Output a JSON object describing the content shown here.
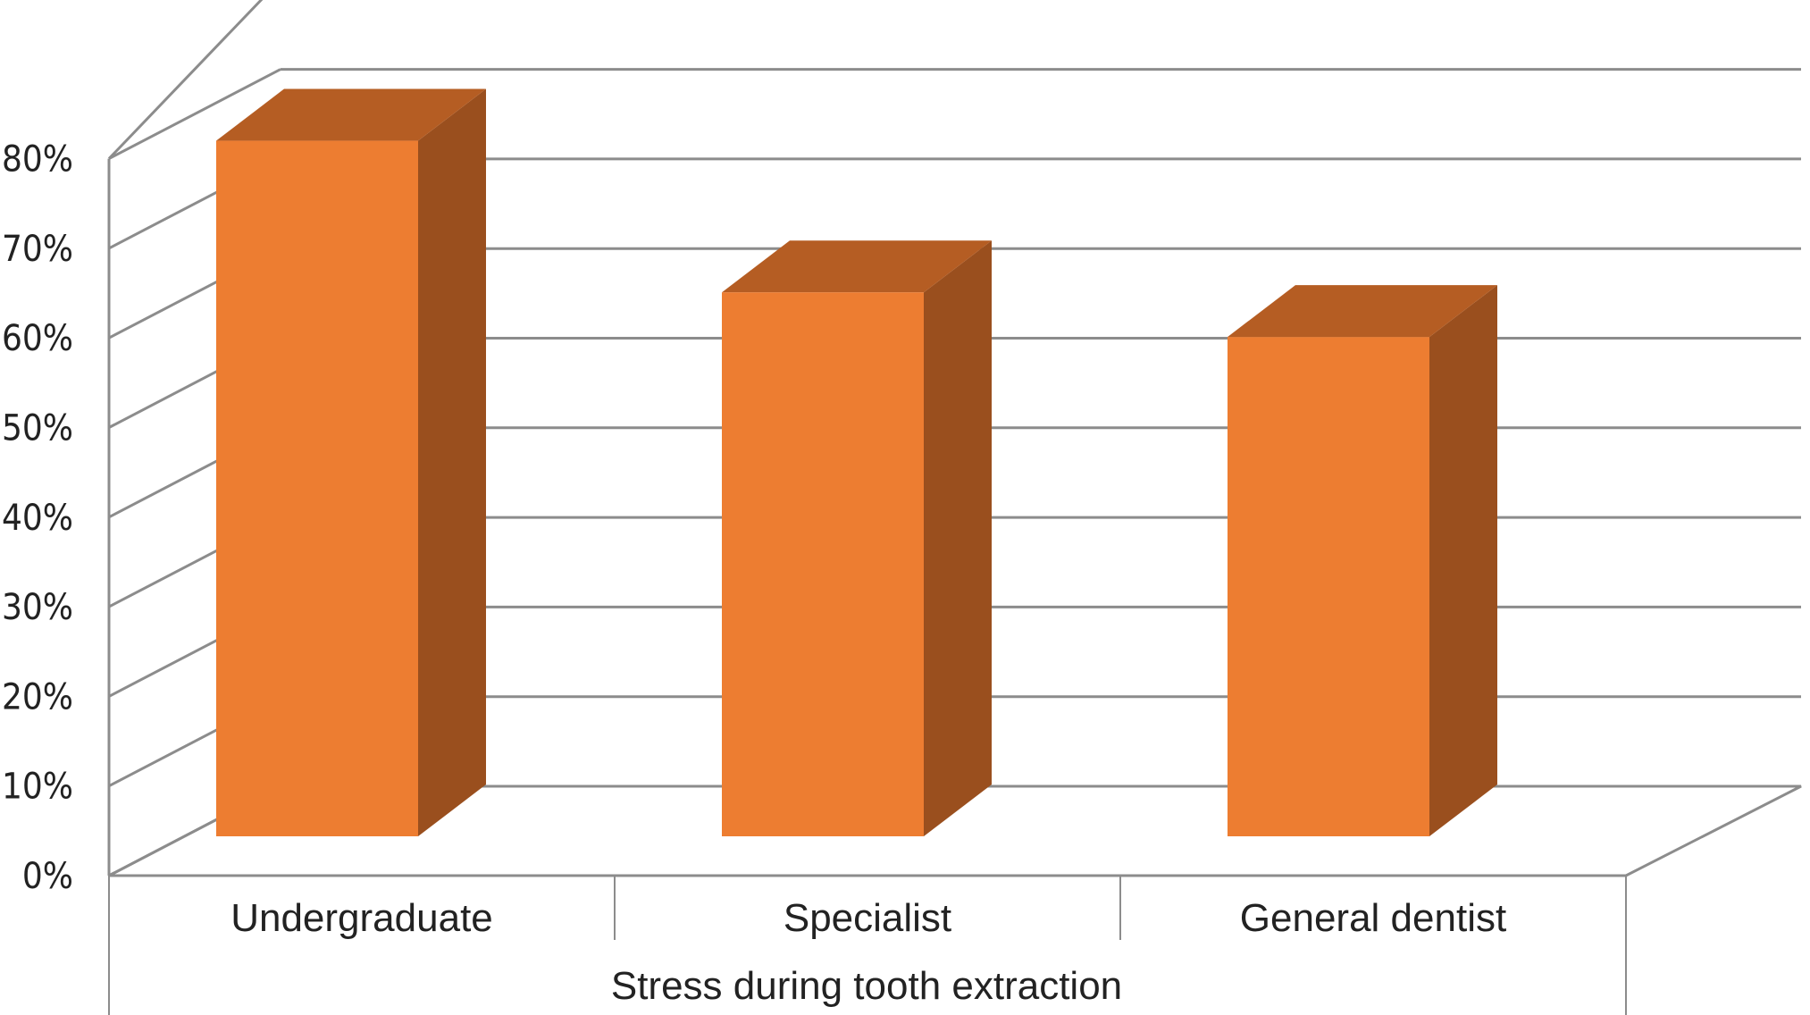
{
  "chart_data": {
    "type": "bar",
    "style": "3d-column",
    "categories": [
      "Undergraduate",
      "Specialist",
      "General dentist"
    ],
    "values": [
      78,
      61,
      56
    ],
    "unit": "%",
    "xlabel": "Stress during tooth extraction",
    "ylabel": "",
    "ylim": [
      0,
      80
    ],
    "yticks": [
      "0%",
      "10%",
      "20%",
      "30%",
      "40%",
      "50%",
      "60%",
      "70%",
      "80%"
    ],
    "grid": true,
    "legend": "none",
    "colors": {
      "bar_front": "#ED7D31",
      "bar_top": "#B55D23",
      "bar_side": "#9A4F1E",
      "grid": "#8C8C8C",
      "text": "#222222"
    }
  }
}
